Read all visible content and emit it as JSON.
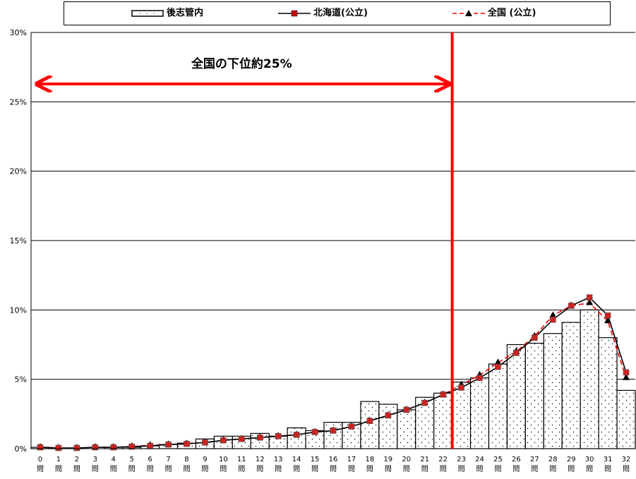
{
  "legend": {
    "bar_label": "後志管内",
    "line1_label": "北海道(公立)",
    "line2_label": "全国 (公立)"
  },
  "annotation": "全国の下位約25%",
  "chart_data": {
    "type": "bar",
    "categories": [
      "0問",
      "1問",
      "2問",
      "3問",
      "4問",
      "5問",
      "6問",
      "7問",
      "8問",
      "9問",
      "10問",
      "11問",
      "12問",
      "13問",
      "14問",
      "15問",
      "16問",
      "17問",
      "18問",
      "19問",
      "20問",
      "21問",
      "22問",
      "23問",
      "24問",
      "25問",
      "26問",
      "27問",
      "28問",
      "29問",
      "30問",
      "31問",
      "32問"
    ],
    "ylim": [
      0,
      30
    ],
    "yticks": [
      "0%",
      "5%",
      "10%",
      "15%",
      "20%",
      "25%",
      "30%"
    ],
    "series": [
      {
        "name": "後志管内",
        "type": "bar",
        "values": [
          0.1,
          0,
          0,
          0,
          0.1,
          0.1,
          0.2,
          0.3,
          0.4,
          0.7,
          0.9,
          0.9,
          1.1,
          0.9,
          1.5,
          1.3,
          1.9,
          1.9,
          3.4,
          3.2,
          2.8,
          3.7,
          4.0,
          4.8,
          5.1,
          6.1,
          7.5,
          7.6,
          8.3,
          9.1,
          10.0,
          8.0,
          4.2
        ]
      },
      {
        "name": "北海道(公立)",
        "type": "line",
        "color": "#000000",
        "values": [
          0.1,
          0.05,
          0.05,
          0.1,
          0.1,
          0.15,
          0.2,
          0.3,
          0.35,
          0.45,
          0.6,
          0.7,
          0.8,
          0.9,
          1.0,
          1.2,
          1.3,
          1.6,
          2.0,
          2.4,
          2.8,
          3.3,
          3.9,
          4.4,
          5.1,
          5.9,
          6.9,
          8.0,
          9.3,
          10.3,
          10.9,
          9.6,
          5.5
        ]
      },
      {
        "name": "全国 (公立)",
        "type": "line",
        "color": "#ff0000",
        "values": [
          0.1,
          0.05,
          0.05,
          0.1,
          0.1,
          0.15,
          0.25,
          0.3,
          0.35,
          0.45,
          0.6,
          0.7,
          0.8,
          0.9,
          1.0,
          1.2,
          1.3,
          1.6,
          2.0,
          2.4,
          2.8,
          3.3,
          3.9,
          4.6,
          5.3,
          6.2,
          7.0,
          8.1,
          9.6,
          10.3,
          10.5,
          9.2,
          5.1
        ]
      }
    ],
    "threshold_category": "23問",
    "colors": {
      "bar_fill": "#ffffff",
      "bar_stroke": "#000000",
      "annotation": "#ff0000"
    }
  }
}
